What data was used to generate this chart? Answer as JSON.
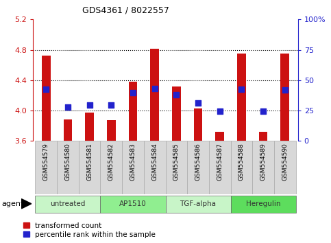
{
  "title": "GDS4361 / 8022557",
  "samples": [
    "GSM554579",
    "GSM554580",
    "GSM554581",
    "GSM554582",
    "GSM554583",
    "GSM554584",
    "GSM554585",
    "GSM554586",
    "GSM554587",
    "GSM554588",
    "GSM554589",
    "GSM554590"
  ],
  "red_values": [
    4.72,
    3.88,
    3.97,
    3.87,
    4.38,
    4.81,
    4.32,
    4.03,
    3.72,
    4.75,
    3.72,
    4.75
  ],
  "blue_values": [
    4.28,
    4.05,
    4.07,
    4.07,
    4.24,
    4.29,
    4.21,
    4.1,
    3.99,
    4.28,
    3.99,
    4.27
  ],
  "ylim_left": [
    3.6,
    5.2
  ],
  "ylim_right": [
    0,
    100
  ],
  "yticks_left": [
    3.6,
    4.0,
    4.4,
    4.8,
    5.2
  ],
  "yticks_right": [
    0,
    25,
    50,
    75,
    100
  ],
  "ytick_labels_right": [
    "0",
    "25",
    "50",
    "75",
    "100%"
  ],
  "grid_lines": [
    4.0,
    4.4,
    4.8
  ],
  "groups": [
    {
      "label": "untreated",
      "start": 0,
      "end": 3,
      "color": "#c8f5c8"
    },
    {
      "label": "AP1510",
      "start": 3,
      "end": 6,
      "color": "#90ee90"
    },
    {
      "label": "TGF-alpha",
      "start": 6,
      "end": 9,
      "color": "#c8f5c8"
    },
    {
      "label": "Heregulin",
      "start": 9,
      "end": 12,
      "color": "#5ddd5d"
    }
  ],
  "bar_bottom": 3.6,
  "bar_color": "#cc1111",
  "bar_width": 0.4,
  "dot_color": "#2222cc",
  "dot_size": 30,
  "legend_items": [
    "transformed count",
    "percentile rank within the sample"
  ],
  "legend_colors": [
    "#cc1111",
    "#2222cc"
  ],
  "agent_label": "agent",
  "plot_bg": "#ffffff",
  "fig_bg": "#ffffff",
  "title_color": "#000000",
  "left_tick_color": "#cc1111",
  "right_tick_color": "#2222cc",
  "sample_bg_color": "#d8d8d8"
}
